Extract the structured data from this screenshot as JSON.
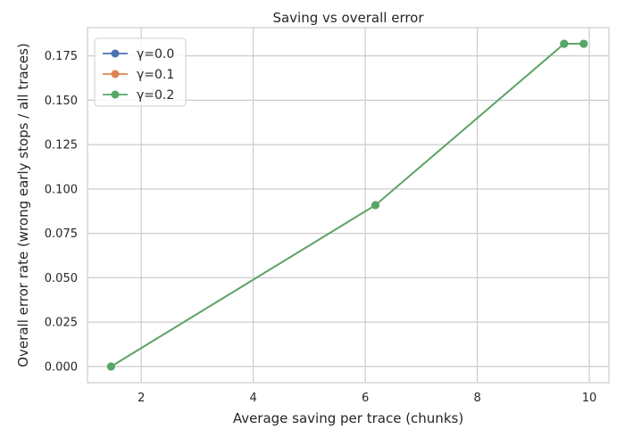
{
  "chart_data": {
    "type": "line",
    "title": "Saving vs overall error",
    "xlabel": "Average saving per trace (chunks)",
    "ylabel": "Overall error rate (wrong early stops / all traces)",
    "xlim": [
      1.04,
      10.35
    ],
    "ylim": [
      -0.0091,
      0.1909
    ],
    "xticks": [
      2,
      4,
      6,
      8,
      10
    ],
    "xtick_labels": [
      "2",
      "4",
      "6",
      "8",
      "10"
    ],
    "yticks": [
      0.0,
      0.025,
      0.05,
      0.075,
      0.1,
      0.125,
      0.15,
      0.175
    ],
    "ytick_labels": [
      "0.000",
      "0.025",
      "0.050",
      "0.075",
      "0.100",
      "0.125",
      "0.150",
      "0.175"
    ],
    "grid": true,
    "legend_position": "top-left",
    "series": [
      {
        "name": "γ=0.0",
        "color": "#4c72b0",
        "x": [
          1.46,
          6.18,
          9.55,
          9.55,
          9.9
        ],
        "y": [
          0.0,
          0.0909,
          0.1818,
          0.1818,
          0.1818
        ]
      },
      {
        "name": "γ=0.1",
        "color": "#dd8452",
        "x": [
          1.46,
          6.18,
          9.55,
          9.55,
          9.9
        ],
        "y": [
          0.0,
          0.0909,
          0.1818,
          0.1818,
          0.1818
        ]
      },
      {
        "name": "γ=0.2",
        "color": "#55a868",
        "x": [
          1.46,
          6.18,
          9.55,
          9.55,
          9.9
        ],
        "y": [
          0.0,
          0.0909,
          0.1818,
          0.1818,
          0.1818
        ]
      }
    ]
  }
}
